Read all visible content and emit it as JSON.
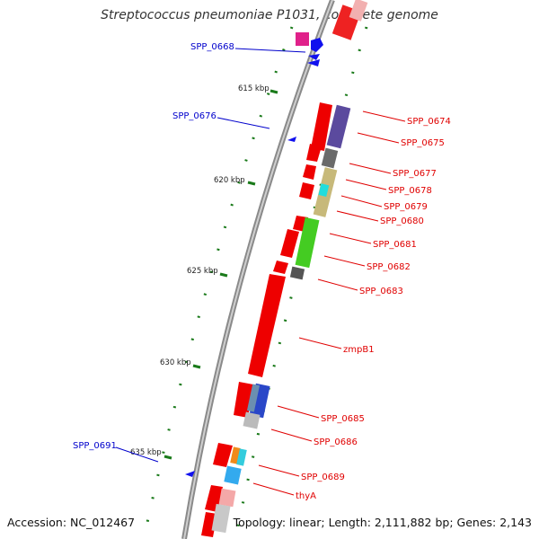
{
  "header": {
    "title": "Streptococcus pneumoniae P1031, complete genome"
  },
  "footer": {
    "accession": "Accession: NC_012467",
    "info": "Topology: linear; Length: 2,111,882 bp; Genes: 2,143"
  },
  "ticks": [
    "615 kbp",
    "620 kbp",
    "625 kbp",
    "630 kbp",
    "635 kbp"
  ],
  "genes_forward": [
    "SPP_0674",
    "SPP_0675",
    "SPP_0677",
    "SPP_0678",
    "SPP_0679",
    "SPP_0680",
    "SPP_0681",
    "SPP_0682",
    "SPP_0683",
    "zmpB1",
    "SPP_0685",
    "SPP_0686",
    "SPP_0689",
    "thyA"
  ],
  "genes_reverse": [
    "SPP_0668",
    "SPP_0676",
    "SPP_0691"
  ],
  "colors": {
    "forward_label": "#e00000",
    "reverse_label": "#0000cc",
    "backbone": "#888888",
    "cds": "#ee0000",
    "tick_mark": "#1a7a1a"
  }
}
